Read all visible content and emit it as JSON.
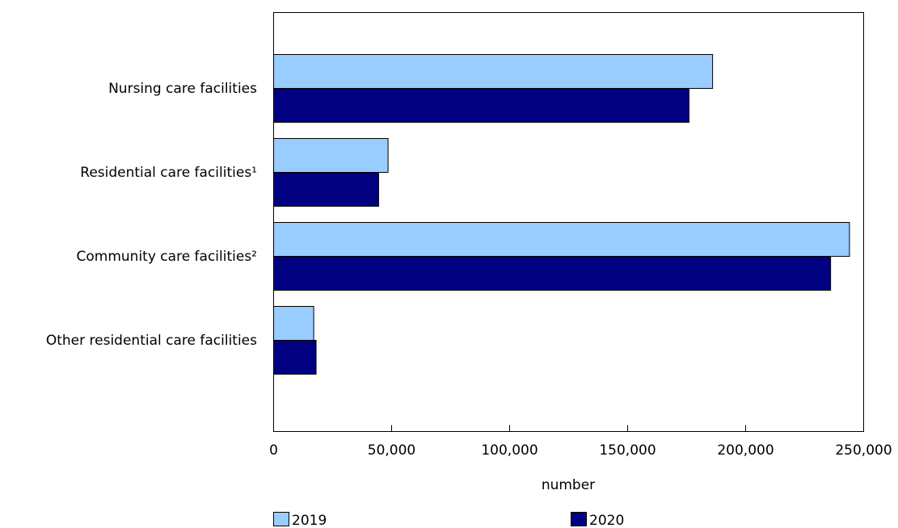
{
  "chart_data": {
    "type": "bar",
    "orientation": "horizontal",
    "categories": [
      "Nursing care facilities",
      "Residential care facilities¹",
      "Community care facilities²",
      "Other residential care facilities"
    ],
    "series": [
      {
        "name": "2019",
        "color": "#99ccff",
        "values": [
          186000,
          48500,
          244000,
          17000
        ]
      },
      {
        "name": "2020",
        "color": "#000080",
        "values": [
          176000,
          44500,
          236000,
          18000
        ]
      }
    ],
    "xlabel": "number",
    "ylabel": "",
    "title": "",
    "xlim": [
      0,
      250000
    ],
    "xticks": [
      0,
      50000,
      100000,
      150000,
      200000,
      250000
    ],
    "xtick_labels": [
      "0",
      "50,000",
      "100,000",
      "150,000",
      "200,000",
      "250,000"
    ],
    "grid": false,
    "legend": {
      "placement": "bottom"
    }
  }
}
